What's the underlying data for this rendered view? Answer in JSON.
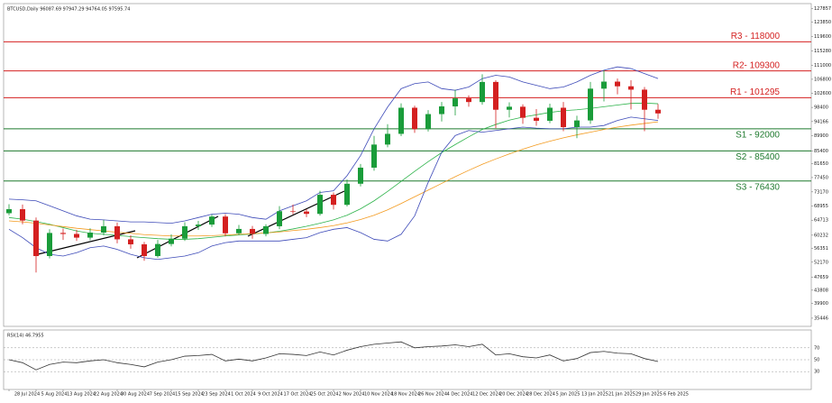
{
  "chart_data": [
    {
      "type": "candlestick",
      "title": "BTCUSD,Daily  96087.69 97947.29 94764.05 97595.74",
      "categories": [
        "28 Jul 2024",
        null,
        "5 Aug 2024",
        null,
        "13 Aug 2024",
        null,
        "22 Aug 2024",
        null,
        "30 Aug 2024",
        null,
        "7 Sep 2024",
        null,
        "15 Sep 2024",
        null,
        "23 Sep 2024",
        null,
        "1 Oct 2024",
        null,
        "9 Oct 2024",
        null,
        "17 Oct 2024",
        null,
        "25 Oct 2024",
        null,
        "2 Nov 2024",
        null,
        "10 Nov 2024",
        null,
        "18 Nov 2024",
        null,
        "26 Nov 2024",
        null,
        "4 Dec 2024",
        null,
        "12 Dec 2024",
        null,
        "20 Dec 2024",
        null,
        "28 Dec 2024",
        null,
        "5 Jan 2025",
        null,
        "13 Jan 2025",
        null,
        "21 Jan 2025",
        null,
        "29 Jan 2025",
        null,
        "6 Feb 2025"
      ],
      "open": [
        66800,
        68000,
        64600,
        54000,
        60900,
        60600,
        59500,
        61000,
        62900,
        59000,
        57500,
        54000,
        57600,
        59200,
        62900,
        63400,
        65800,
        60800,
        62100,
        60600,
        62900,
        67400,
        67300,
        66600,
        72300,
        69300,
        75600,
        80400,
        87300,
        90500,
        98300,
        91900,
        96400,
        98700,
        101100,
        100000,
        106000,
        97700,
        98600,
        95300,
        94400,
        98300,
        92500,
        94500,
        104000,
        106100,
        104700,
        103700,
        97700
      ],
      "high": [
        69500,
        69400,
        65500,
        62000,
        62200,
        61800,
        62300,
        64800,
        64000,
        60200,
        58200,
        58800,
        60500,
        64100,
        64500,
        66400,
        66500,
        63300,
        63000,
        63500,
        68900,
        69400,
        68000,
        73500,
        73000,
        76900,
        81500,
        89900,
        93400,
        99600,
        98900,
        97600,
        100000,
        103700,
        102000,
        108300,
        106500,
        99900,
        99300,
        97900,
        99500,
        100000,
        95900,
        106000,
        109500,
        107000,
        106500,
        104500,
        99400
      ],
      "low": [
        66200,
        63500,
        49100,
        53300,
        58800,
        58500,
        58700,
        60200,
        57800,
        56200,
        52600,
        53500,
        56900,
        58500,
        61800,
        62700,
        59900,
        60300,
        59200,
        59900,
        62000,
        66500,
        65600,
        66100,
        67900,
        68800,
        74800,
        79500,
        86500,
        89800,
        90800,
        91200,
        94200,
        96000,
        98600,
        99200,
        92200,
        95400,
        93500,
        92900,
        93700,
        91300,
        89200,
        93500,
        100200,
        102300,
        97800,
        91300,
        95000
      ],
      "close": [
        68000,
        64600,
        54000,
        60900,
        60600,
        59500,
        61000,
        62900,
        59000,
        57500,
        54000,
        57600,
        59200,
        62900,
        63400,
        65800,
        60800,
        62100,
        60600,
        62900,
        67400,
        67300,
        66600,
        72300,
        69300,
        75600,
        80400,
        87300,
        90500,
        98300,
        91900,
        96400,
        98700,
        101100,
        100000,
        106000,
        97700,
        98600,
        95300,
        94400,
        98300,
        92500,
        94500,
        104000,
        106100,
        104700,
        103700,
        97700,
        96600
      ],
      "up_color": "#1a9c3a",
      "down_color": "#d42020",
      "lines": [
        {
          "color": "#2db34a",
          "values": [
            65500,
            65000,
            64300,
            63500,
            62500,
            61500,
            60800,
            60500,
            60200,
            59800,
            59500,
            59200,
            59000,
            59000,
            59200,
            59600,
            60000,
            60300,
            60600,
            60900,
            61400,
            62100,
            62900,
            63800,
            64800,
            66200,
            68100,
            70500,
            73300,
            76300,
            79300,
            82200,
            84900,
            87300,
            89600,
            91800,
            93300,
            94600,
            95500,
            96200,
            96900,
            97400,
            97700,
            98100,
            98600,
            99100,
            99600,
            99700,
            99500
          ]
        },
        {
          "color": "#f39a1e",
          "values": [
            64500,
            64200,
            63800,
            63300,
            62800,
            62300,
            61900,
            61500,
            61100,
            60800,
            60400,
            60200,
            60000,
            60000,
            60000,
            60100,
            60300,
            60500,
            60700,
            60900,
            61200,
            61600,
            62000,
            62500,
            63100,
            63900,
            64900,
            66200,
            67800,
            69700,
            71700,
            73700,
            75700,
            77700,
            79600,
            81400,
            83000,
            84500,
            85900,
            87200,
            88300,
            89300,
            90200,
            91000,
            91800,
            92500,
            93100,
            93600,
            94100
          ]
        },
        {
          "color": "#3d4ab8",
          "values": [
            71000,
            70800,
            70500,
            69000,
            67500,
            66000,
            65000,
            64800,
            64500,
            64200,
            64200,
            64000,
            63800,
            64500,
            65500,
            66500,
            66800,
            66500,
            65500,
            65000,
            67500,
            69000,
            70500,
            73000,
            73500,
            78000,
            84000,
            92000,
            98500,
            104000,
            105500,
            106000,
            104000,
            103500,
            104500,
            107000,
            108000,
            107500,
            106000,
            105000,
            104000,
            104500,
            106000,
            108000,
            109500,
            110500,
            110000,
            108500,
            107000
          ]
        },
        {
          "color": "#3d4ab8",
          "values": [
            62000,
            59500,
            56500,
            54500,
            54000,
            55000,
            56500,
            57000,
            56000,
            54500,
            53500,
            53000,
            53500,
            54000,
            55000,
            57000,
            58000,
            58500,
            58500,
            58500,
            58500,
            59000,
            59500,
            61000,
            62000,
            62500,
            61000,
            59000,
            58500,
            60500,
            66000,
            76000,
            85000,
            90000,
            91500,
            91000,
            91500,
            92000,
            92500,
            92200,
            92000,
            92000,
            92500,
            92500,
            93000,
            94500,
            95500,
            95000,
            94500
          ]
        }
      ],
      "levels": [
        {
          "label": "R3 - 118000",
          "value": 118000,
          "color": "#d42020"
        },
        {
          "label": "R2- 109300",
          "value": 109300,
          "color": "#d42020"
        },
        {
          "label": "R1 - 101295",
          "value": 101295,
          "color": "#d42020"
        },
        {
          "label": "S1 - 92000",
          "value": 92000,
          "color": "#1e7a2e"
        },
        {
          "label": "S2 - 85400",
          "value": 85400,
          "color": "#1e7a2e"
        },
        {
          "label": "S3 - 76430",
          "value": 76430,
          "color": "#1e7a2e"
        }
      ],
      "ylim": [
        33000,
        129400
      ],
      "yticks": [
        35446,
        39900,
        43808,
        47659,
        52170,
        56351,
        60232,
        64713,
        68955,
        73170,
        77450,
        81650,
        85400,
        89900,
        94166,
        98400,
        102600,
        106800,
        111000,
        115280,
        119600,
        123850,
        127857
      ]
    },
    {
      "type": "line",
      "title": "RSI(14) 46.7955",
      "values": [
        50,
        45,
        33,
        42,
        46,
        45,
        48,
        50,
        45,
        42,
        38,
        46,
        50,
        56,
        57,
        59,
        48,
        51,
        48,
        53,
        60,
        59,
        57,
        63,
        58,
        66,
        72,
        76,
        78,
        80,
        70,
        72,
        73,
        75,
        72,
        76,
        58,
        60,
        55,
        53,
        58,
        48,
        52,
        62,
        64,
        61,
        60,
        52,
        47
      ],
      "color": "#333333",
      "ylim": [
        0,
        100
      ],
      "yticks": [
        30,
        50,
        70
      ]
    }
  ]
}
